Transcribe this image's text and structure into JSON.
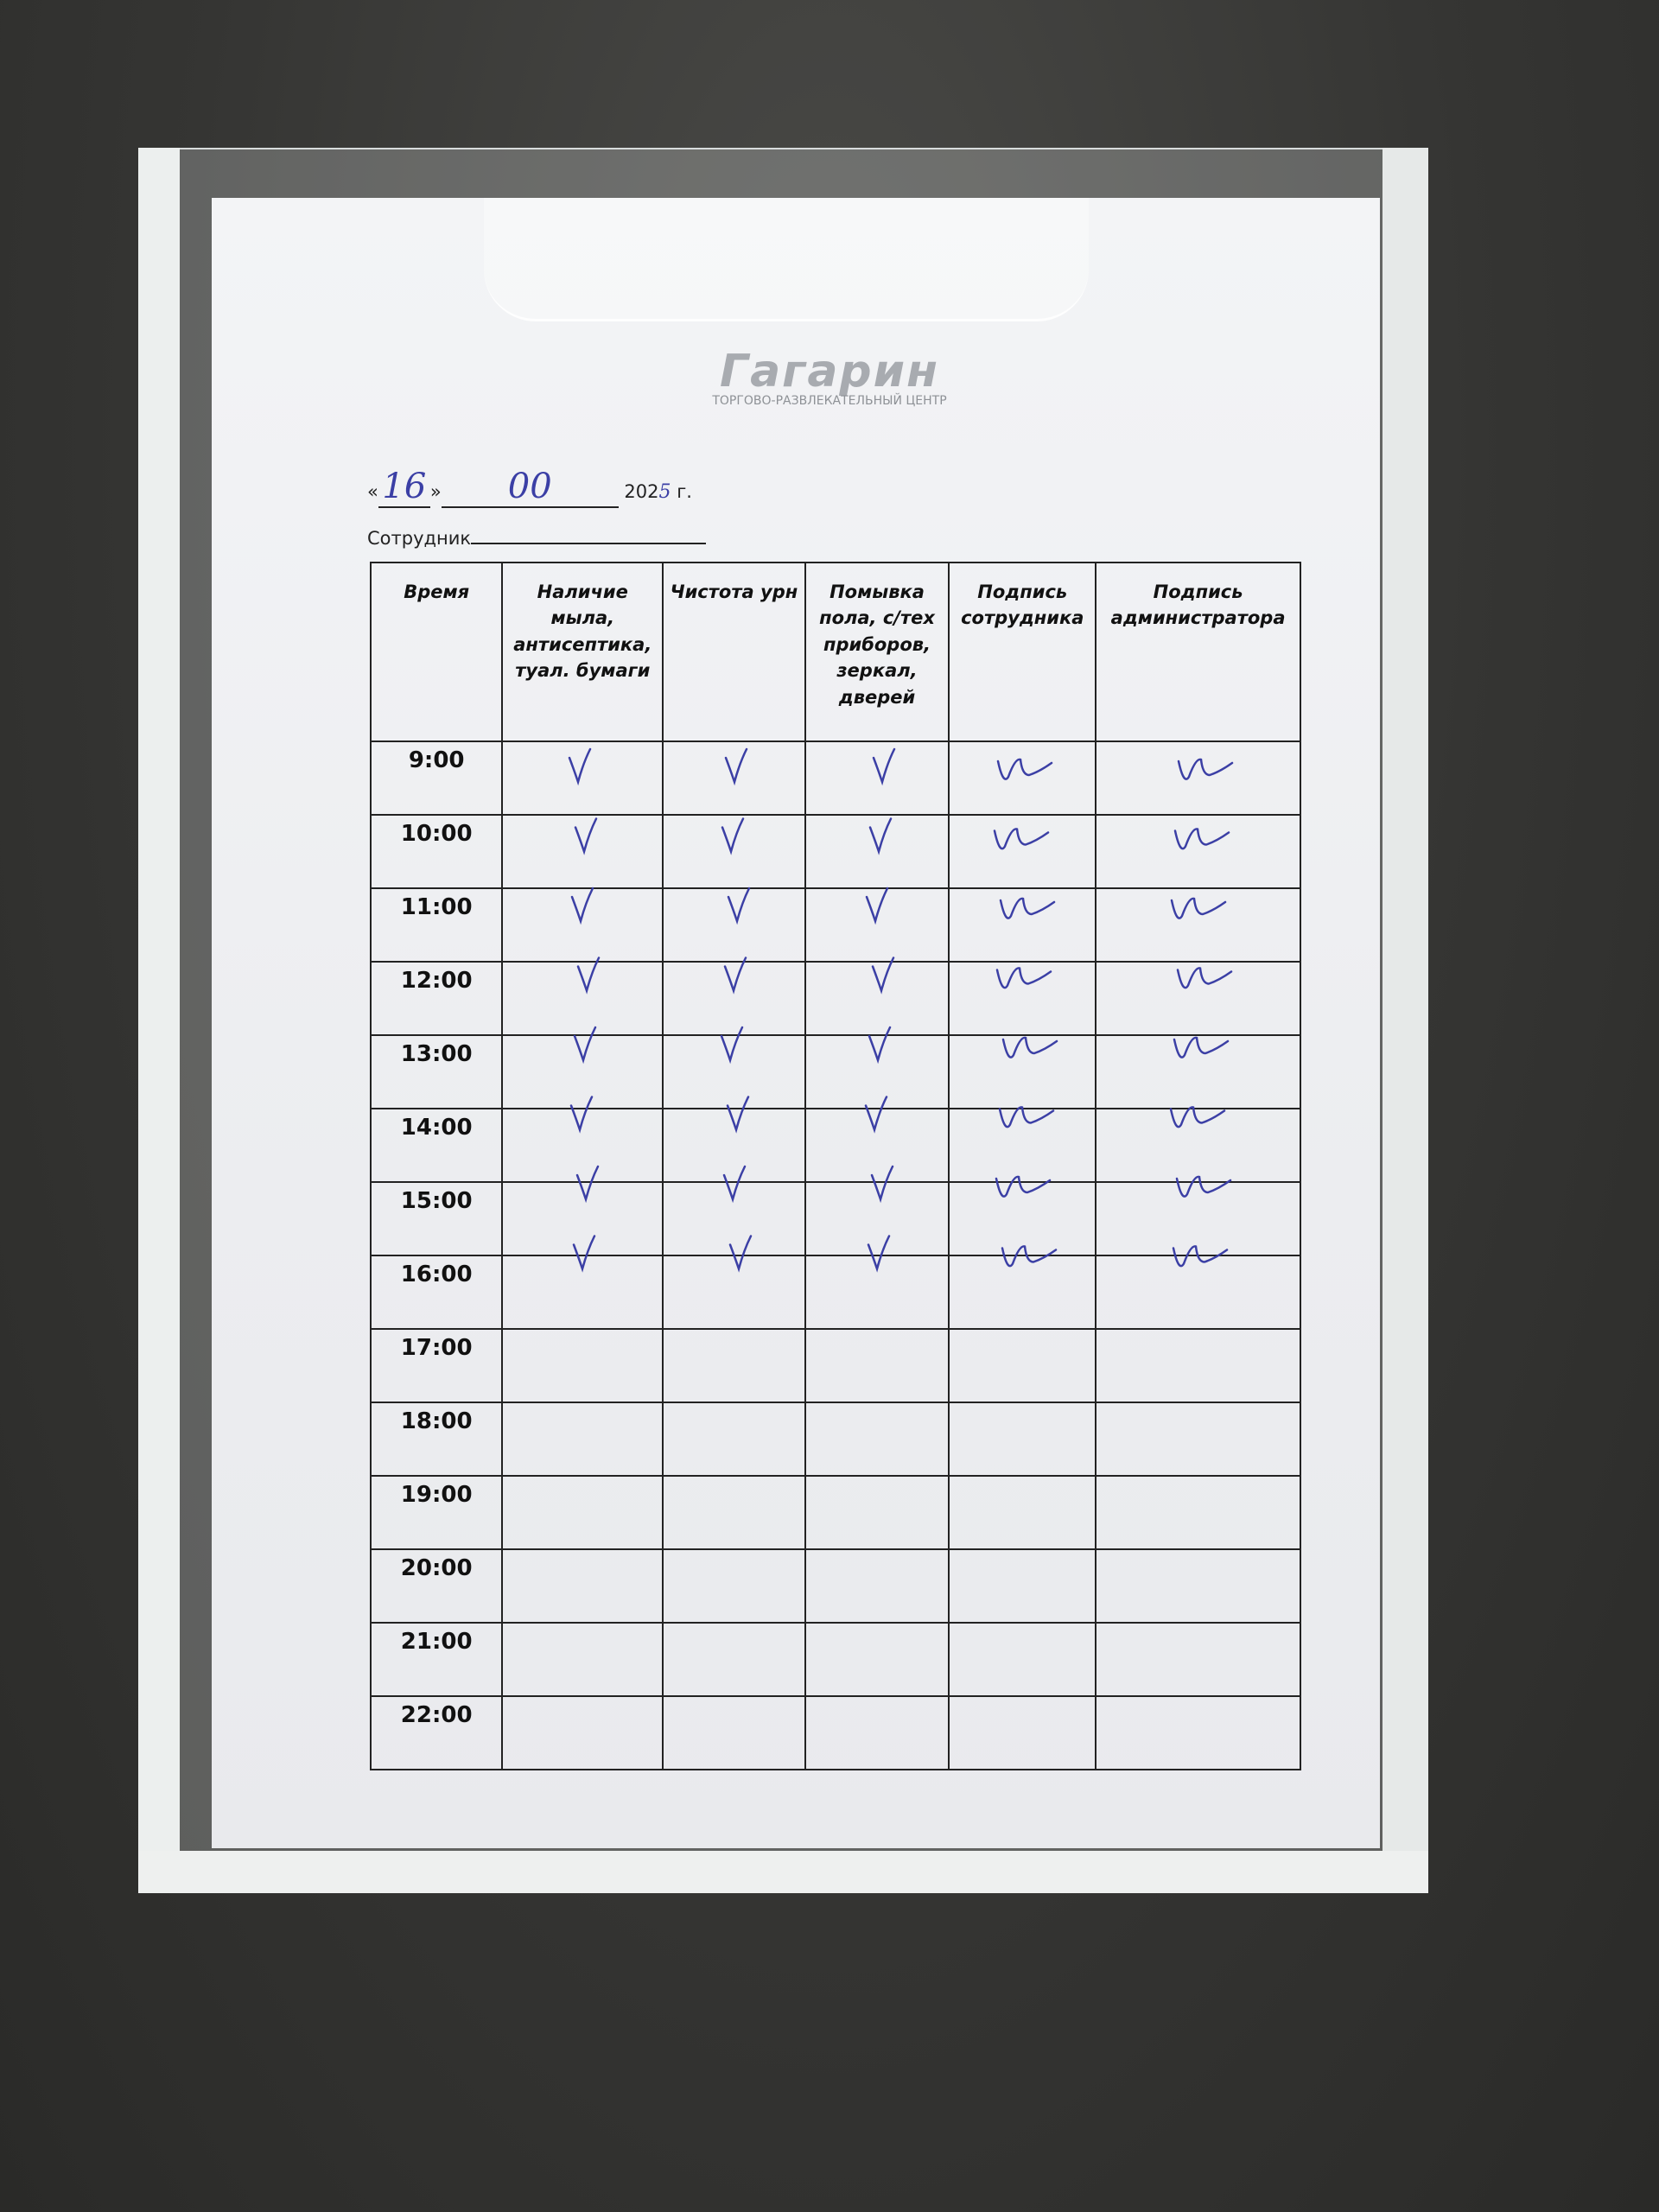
{
  "logo": {
    "name": "Гагарин",
    "subtitle": "ТОРГОВО-РАЗВЛЕКАТЕЛЬНЫЙ ЦЕНТР"
  },
  "date": {
    "open_quote": "«",
    "day": "16",
    "close_quote": "»",
    "month": "00",
    "year_prefix": "202",
    "year_digit": "5",
    "year_suffix": "г."
  },
  "employee_label": "Сотрудник",
  "table": {
    "headers": [
      "Время",
      "Наличие мыла, антисептика, туал. бумаги",
      "Чистота урн",
      "Помывка пола, с/тех приборов, зеркал, дверей",
      "Подпись сотрудника",
      "Подпись администратора"
    ],
    "times": [
      "9:00",
      "10:00",
      "11:00",
      "12:00",
      "13:00",
      "14:00",
      "15:00",
      "16:00",
      "17:00",
      "18:00",
      "19:00",
      "20:00",
      "21:00",
      "22:00"
    ]
  }
}
